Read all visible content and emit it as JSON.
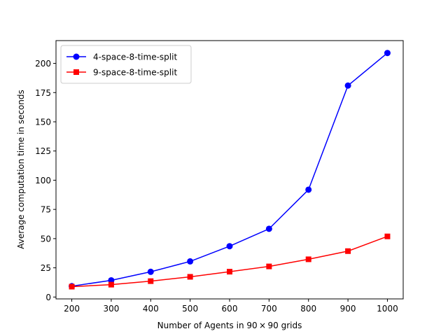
{
  "chart_data": {
    "type": "line",
    "title": "",
    "xlabel": "Number of Agents in 90 × 90 grids",
    "ylabel": "Average computation time in seconds",
    "x": [
      200,
      300,
      400,
      500,
      600,
      700,
      800,
      900,
      1000
    ],
    "xticks": [
      200,
      300,
      400,
      500,
      600,
      700,
      800,
      900,
      1000
    ],
    "yticks": [
      0,
      25,
      50,
      75,
      100,
      125,
      150,
      175,
      200
    ],
    "xlim": [
      160,
      1040
    ],
    "ylim": [
      -1.6,
      219.5
    ],
    "grid": false,
    "legend_position": "upper-left",
    "series": [
      {
        "name": "4-space-8-time-split",
        "color": "#0000ff",
        "marker": "circle",
        "values": [
          9.3,
          14.3,
          21.6,
          30.5,
          43.5,
          58.4,
          91.9,
          181.0,
          208.9
        ]
      },
      {
        "name": "9-space-8-time-split",
        "color": "#ff0000",
        "marker": "square",
        "values": [
          8.9,
          10.6,
          13.6,
          17.3,
          21.7,
          26.2,
          32.3,
          39.3,
          51.9
        ]
      }
    ]
  }
}
